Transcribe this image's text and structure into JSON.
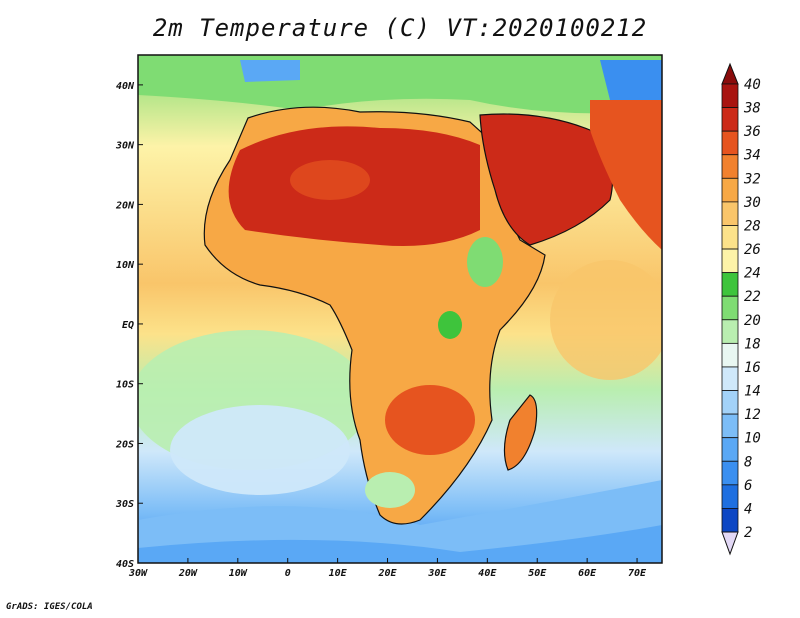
{
  "title": "2m Temperature (C) VT:2020100212",
  "credit": "GrADS: IGES/COLA",
  "map": {
    "lon_labels": [
      "30W",
      "20W",
      "10W",
      "0",
      "10E",
      "20E",
      "30E",
      "40E",
      "50E",
      "60E",
      "70E"
    ],
    "lat_labels": [
      "40N",
      "30N",
      "20N",
      "10N",
      "EQ",
      "10S",
      "20S",
      "30S",
      "40S"
    ],
    "lon_range": [
      -30,
      75
    ],
    "lat_range": [
      -40,
      45
    ]
  },
  "colorbar": {
    "levels": [
      "2",
      "4",
      "6",
      "8",
      "10",
      "12",
      "14",
      "16",
      "18",
      "20",
      "22",
      "24",
      "26",
      "28",
      "30",
      "32",
      "34",
      "36",
      "38",
      "40"
    ],
    "colors": [
      "#1a1f8c",
      "#0d47c4",
      "#1e6fe0",
      "#3a8ff0",
      "#5aa8f5",
      "#7cbdf7",
      "#a3d2f8",
      "#cfe8fa",
      "#e9f7f2",
      "#b9eeb0",
      "#7fdc73",
      "#3ec43c",
      "#fdf3a8",
      "#fce28a",
      "#f9c56a",
      "#f7a845",
      "#f1812e",
      "#e6541f",
      "#cc2a18",
      "#a81410"
    ],
    "under_color": "#e2d8f5",
    "over_color": "#8a0c0c"
  }
}
